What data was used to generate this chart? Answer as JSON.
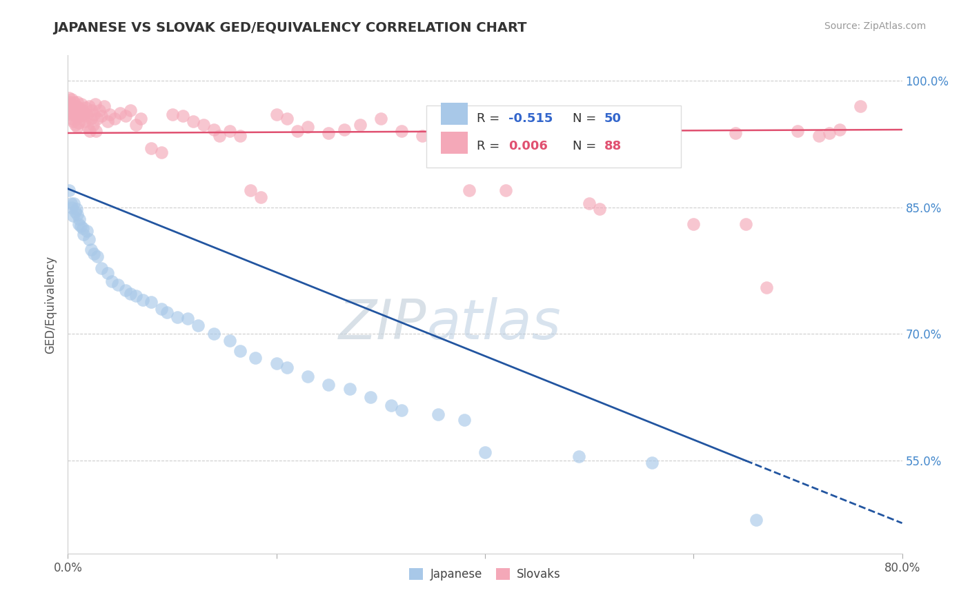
{
  "title": "JAPANESE VS SLOVAK GED/EQUIVALENCY CORRELATION CHART",
  "source": "Source: ZipAtlas.com",
  "ylabel": "GED/Equivalency",
  "xlim": [
    0.0,
    0.8
  ],
  "ylim": [
    0.44,
    1.03
  ],
  "xtick_pos": [
    0.0,
    0.2,
    0.4,
    0.6,
    0.8
  ],
  "xtick_labels": [
    "0.0%",
    "",
    "",
    "",
    "80.0%"
  ],
  "ytick_values": [
    1.0,
    0.85,
    0.7,
    0.55
  ],
  "ytick_labels": [
    "100.0%",
    "85.0%",
    "70.0%",
    "55.0%"
  ],
  "grid_color": "#cccccc",
  "background_color": "#ffffff",
  "japanese_color": "#a8c8e8",
  "slovak_color": "#f4a8b8",
  "japanese_R": -0.515,
  "japanese_N": 50,
  "slovak_R": 0.006,
  "slovak_N": 88,
  "trend_line_japanese_color": "#2255a0",
  "trend_line_slovak_color": "#e05070",
  "japanese_points": [
    [
      0.001,
      0.87
    ],
    [
      0.003,
      0.855
    ],
    [
      0.004,
      0.85
    ],
    [
      0.005,
      0.84
    ],
    [
      0.006,
      0.855
    ],
    [
      0.007,
      0.845
    ],
    [
      0.008,
      0.848
    ],
    [
      0.009,
      0.842
    ],
    [
      0.01,
      0.83
    ],
    [
      0.011,
      0.836
    ],
    [
      0.012,
      0.828
    ],
    [
      0.014,
      0.825
    ],
    [
      0.015,
      0.818
    ],
    [
      0.018,
      0.822
    ],
    [
      0.02,
      0.812
    ],
    [
      0.022,
      0.8
    ],
    [
      0.025,
      0.795
    ],
    [
      0.028,
      0.792
    ],
    [
      0.032,
      0.778
    ],
    [
      0.038,
      0.772
    ],
    [
      0.042,
      0.762
    ],
    [
      0.048,
      0.758
    ],
    [
      0.055,
      0.752
    ],
    [
      0.06,
      0.748
    ],
    [
      0.065,
      0.745
    ],
    [
      0.072,
      0.74
    ],
    [
      0.08,
      0.738
    ],
    [
      0.09,
      0.73
    ],
    [
      0.095,
      0.726
    ],
    [
      0.105,
      0.72
    ],
    [
      0.115,
      0.718
    ],
    [
      0.125,
      0.71
    ],
    [
      0.14,
      0.7
    ],
    [
      0.155,
      0.692
    ],
    [
      0.165,
      0.68
    ],
    [
      0.18,
      0.672
    ],
    [
      0.2,
      0.665
    ],
    [
      0.21,
      0.66
    ],
    [
      0.23,
      0.65
    ],
    [
      0.25,
      0.64
    ],
    [
      0.27,
      0.635
    ],
    [
      0.29,
      0.625
    ],
    [
      0.31,
      0.615
    ],
    [
      0.32,
      0.61
    ],
    [
      0.355,
      0.605
    ],
    [
      0.38,
      0.598
    ],
    [
      0.4,
      0.56
    ],
    [
      0.49,
      0.555
    ],
    [
      0.56,
      0.548
    ],
    [
      0.66,
      0.48
    ]
  ],
  "slovak_points": [
    [
      0.001,
      0.98
    ],
    [
      0.002,
      0.975
    ],
    [
      0.002,
      0.965
    ],
    [
      0.003,
      0.972
    ],
    [
      0.003,
      0.96
    ],
    [
      0.004,
      0.978
    ],
    [
      0.004,
      0.955
    ],
    [
      0.005,
      0.968
    ],
    [
      0.005,
      0.952
    ],
    [
      0.006,
      0.975
    ],
    [
      0.006,
      0.96
    ],
    [
      0.007,
      0.965
    ],
    [
      0.007,
      0.948
    ],
    [
      0.008,
      0.97
    ],
    [
      0.008,
      0.958
    ],
    [
      0.009,
      0.975
    ],
    [
      0.009,
      0.945
    ],
    [
      0.01,
      0.968
    ],
    [
      0.01,
      0.95
    ],
    [
      0.011,
      0.962
    ],
    [
      0.012,
      0.958
    ],
    [
      0.013,
      0.972
    ],
    [
      0.014,
      0.965
    ],
    [
      0.015,
      0.958
    ],
    [
      0.016,
      0.952
    ],
    [
      0.017,
      0.968
    ],
    [
      0.018,
      0.96
    ],
    [
      0.019,
      0.945
    ],
    [
      0.02,
      0.97
    ],
    [
      0.021,
      0.94
    ],
    [
      0.022,
      0.955
    ],
    [
      0.023,
      0.965
    ],
    [
      0.024,
      0.948
    ],
    [
      0.025,
      0.96
    ],
    [
      0.026,
      0.972
    ],
    [
      0.027,
      0.94
    ],
    [
      0.028,
      0.955
    ],
    [
      0.03,
      0.965
    ],
    [
      0.032,
      0.958
    ],
    [
      0.035,
      0.97
    ],
    [
      0.038,
      0.952
    ],
    [
      0.04,
      0.96
    ],
    [
      0.045,
      0.955
    ],
    [
      0.05,
      0.962
    ],
    [
      0.055,
      0.958
    ],
    [
      0.06,
      0.965
    ],
    [
      0.065,
      0.948
    ],
    [
      0.07,
      0.955
    ],
    [
      0.08,
      0.92
    ],
    [
      0.09,
      0.915
    ],
    [
      0.1,
      0.96
    ],
    [
      0.11,
      0.958
    ],
    [
      0.12,
      0.952
    ],
    [
      0.13,
      0.948
    ],
    [
      0.14,
      0.942
    ],
    [
      0.145,
      0.935
    ],
    [
      0.155,
      0.94
    ],
    [
      0.165,
      0.935
    ],
    [
      0.175,
      0.87
    ],
    [
      0.185,
      0.862
    ],
    [
      0.2,
      0.96
    ],
    [
      0.21,
      0.955
    ],
    [
      0.22,
      0.94
    ],
    [
      0.23,
      0.945
    ],
    [
      0.25,
      0.938
    ],
    [
      0.265,
      0.942
    ],
    [
      0.28,
      0.948
    ],
    [
      0.3,
      0.955
    ],
    [
      0.32,
      0.94
    ],
    [
      0.34,
      0.935
    ],
    [
      0.36,
      0.942
    ],
    [
      0.385,
      0.87
    ],
    [
      0.4,
      0.938
    ],
    [
      0.42,
      0.87
    ],
    [
      0.445,
      0.935
    ],
    [
      0.47,
      0.938
    ],
    [
      0.5,
      0.855
    ],
    [
      0.51,
      0.848
    ],
    [
      0.545,
      0.935
    ],
    [
      0.6,
      0.83
    ],
    [
      0.64,
      0.938
    ],
    [
      0.65,
      0.83
    ],
    [
      0.67,
      0.755
    ],
    [
      0.7,
      0.94
    ],
    [
      0.72,
      0.935
    ],
    [
      0.73,
      0.938
    ],
    [
      0.74,
      0.942
    ],
    [
      0.76,
      0.97
    ]
  ],
  "trend_jap_x0": 0.0,
  "trend_jap_y0": 0.872,
  "trend_jap_x1": 0.65,
  "trend_jap_y1": 0.55,
  "trend_jap_ext_x1": 0.8,
  "trend_jap_ext_y1": 0.476,
  "trend_slo_x0": 0.0,
  "trend_slo_y0": 0.938,
  "trend_slo_x1": 0.8,
  "trend_slo_y1": 0.942,
  "legend_box_color_japanese": "#a8c8e8",
  "legend_box_color_slovak": "#f4a8b8",
  "legend_R_color_japanese": "#3366cc",
  "legend_R_color_slovak": "#e05070"
}
